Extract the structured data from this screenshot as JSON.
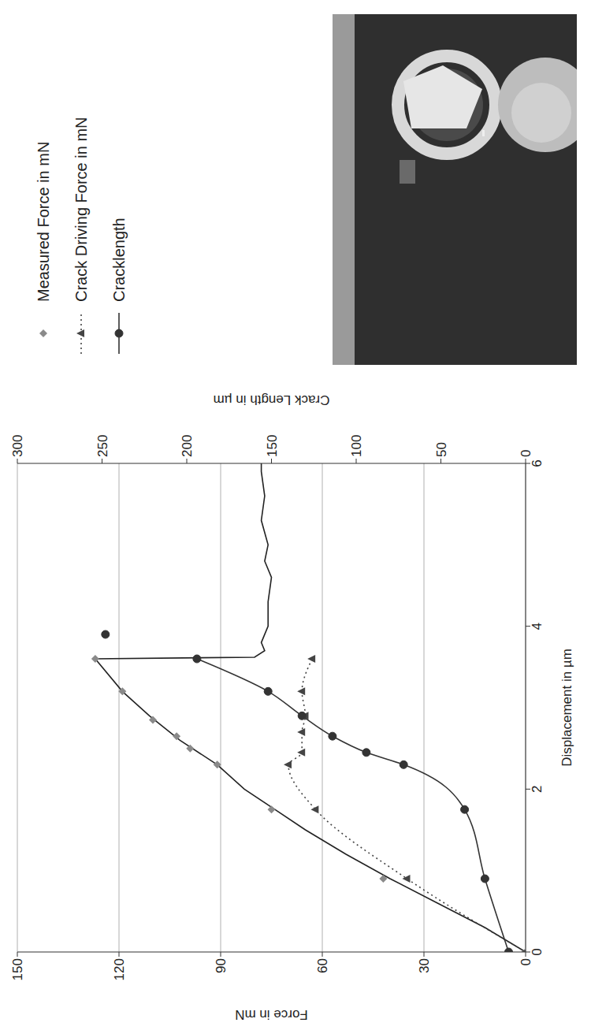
{
  "chart_data": {
    "type": "line",
    "x_label": "Displacement in µm",
    "y_label": "Force in mN",
    "y2_label": "Crack Length in µm",
    "xlim": [
      0,
      6
    ],
    "xticks": [
      0,
      2,
      4,
      6
    ],
    "ylim": [
      0,
      150
    ],
    "yticks": [
      0,
      30,
      60,
      90,
      120,
      150
    ],
    "y2lim": [
      0,
      300
    ],
    "y2ticks": [
      0,
      50,
      100,
      150,
      200,
      250,
      300
    ],
    "grid": true,
    "legend": "right",
    "series": [
      {
        "color": "#222222",
        "marker": "none",
        "line_style": "solid",
        "x": [
          0,
          0.3,
          0.6,
          0.9,
          1.2,
          1.5,
          1.75,
          2.0,
          2.3,
          2.6,
          2.9,
          3.2,
          3.6,
          3.62,
          3.7,
          3.8,
          4.0,
          4.3,
          4.6,
          4.8,
          5.0,
          5.3,
          5.6,
          5.9,
          6.0
        ],
        "values": [
          0,
          12,
          26,
          40,
          53,
          65,
          74,
          83,
          91,
          102,
          111,
          119,
          127,
          80,
          77,
          78,
          76,
          76,
          75,
          77,
          76,
          78,
          77,
          78,
          78
        ]
      },
      {
        "name": "Measured Force in mN",
        "color": "#8a8a8a",
        "marker": "diamond",
        "line_style": "none",
        "x": [
          0,
          0.9,
          1.75,
          2.3,
          2.5,
          2.65,
          2.85,
          3.2,
          3.6
        ],
        "values": [
          0,
          42,
          75,
          91,
          99,
          103,
          110,
          119,
          127
        ]
      },
      {
        "name": "Crack Driving Force in mN",
        "color": "#444444",
        "marker": "triangle",
        "line_style": "dotted",
        "x": [
          0,
          0.9,
          1.75,
          2.3,
          2.45,
          2.7,
          2.9,
          3.2,
          3.6
        ],
        "values": [
          0,
          35,
          62,
          70,
          66,
          66,
          65,
          66,
          63
        ]
      },
      {
        "name": "Cracklength",
        "color": "#333333",
        "marker": "circle",
        "line_style": "solid",
        "axis": "y2",
        "x": [
          0,
          0.9,
          1.75,
          2.3,
          2.45,
          2.65,
          2.9,
          3.2,
          3.6,
          3.75,
          3.9
        ],
        "values": [
          10,
          24,
          36,
          72,
          94,
          114,
          132,
          152,
          194,
          null,
          248
        ]
      }
    ]
  }
}
